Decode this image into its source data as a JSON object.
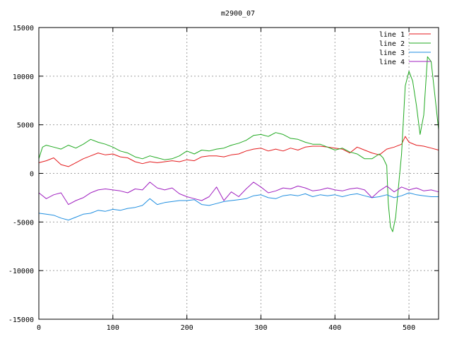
{
  "chart_data": {
    "type": "line",
    "title": "m2900_07",
    "xlabel": "",
    "ylabel": "",
    "xlim": [
      0,
      540
    ],
    "ylim": [
      -15000,
      15000
    ],
    "xticks": [
      0,
      100,
      200,
      300,
      400,
      500
    ],
    "yticks": [
      -15000,
      -10000,
      -5000,
      0,
      5000,
      10000,
      15000
    ],
    "grid": true,
    "legend_position": "top-right",
    "series": [
      {
        "name": "line 1",
        "color": "#e41a1c",
        "points": [
          [
            0,
            1100
          ],
          [
            10,
            1300
          ],
          [
            20,
            1600
          ],
          [
            30,
            900
          ],
          [
            40,
            700
          ],
          [
            50,
            1100
          ],
          [
            60,
            1500
          ],
          [
            70,
            1800
          ],
          [
            80,
            2100
          ],
          [
            90,
            1900
          ],
          [
            100,
            2000
          ],
          [
            110,
            1700
          ],
          [
            120,
            1600
          ],
          [
            130,
            1200
          ],
          [
            140,
            1000
          ],
          [
            150,
            1200
          ],
          [
            160,
            1100
          ],
          [
            170,
            1200
          ],
          [
            180,
            1300
          ],
          [
            190,
            1200
          ],
          [
            200,
            1400
          ],
          [
            210,
            1300
          ],
          [
            220,
            1700
          ],
          [
            230,
            1800
          ],
          [
            240,
            1800
          ],
          [
            250,
            1700
          ],
          [
            260,
            1900
          ],
          [
            270,
            2000
          ],
          [
            280,
            2300
          ],
          [
            290,
            2500
          ],
          [
            300,
            2600
          ],
          [
            310,
            2300
          ],
          [
            320,
            2500
          ],
          [
            330,
            2300
          ],
          [
            340,
            2600
          ],
          [
            350,
            2400
          ],
          [
            360,
            2700
          ],
          [
            370,
            2800
          ],
          [
            380,
            2800
          ],
          [
            390,
            2700
          ],
          [
            400,
            2600
          ],
          [
            410,
            2500
          ],
          [
            420,
            2100
          ],
          [
            430,
            2700
          ],
          [
            440,
            2400
          ],
          [
            450,
            2100
          ],
          [
            460,
            1900
          ],
          [
            470,
            2500
          ],
          [
            480,
            2700
          ],
          [
            490,
            3000
          ],
          [
            495,
            3800
          ],
          [
            500,
            3200
          ],
          [
            510,
            2900
          ],
          [
            520,
            2800
          ],
          [
            530,
            2600
          ],
          [
            540,
            2400
          ]
        ]
      },
      {
        "name": "line 2",
        "color": "#22aa22",
        "points": [
          [
            0,
            1500
          ],
          [
            5,
            2700
          ],
          [
            10,
            2900
          ],
          [
            20,
            2700
          ],
          [
            30,
            2500
          ],
          [
            40,
            2900
          ],
          [
            50,
            2600
          ],
          [
            60,
            3000
          ],
          [
            70,
            3500
          ],
          [
            80,
            3200
          ],
          [
            90,
            3000
          ],
          [
            100,
            2700
          ],
          [
            110,
            2300
          ],
          [
            120,
            2100
          ],
          [
            130,
            1700
          ],
          [
            140,
            1500
          ],
          [
            150,
            1800
          ],
          [
            160,
            1600
          ],
          [
            170,
            1400
          ],
          [
            180,
            1500
          ],
          [
            190,
            1800
          ],
          [
            200,
            2300
          ],
          [
            210,
            2000
          ],
          [
            220,
            2400
          ],
          [
            230,
            2300
          ],
          [
            240,
            2500
          ],
          [
            250,
            2600
          ],
          [
            260,
            2900
          ],
          [
            270,
            3100
          ],
          [
            280,
            3400
          ],
          [
            290,
            3900
          ],
          [
            300,
            4000
          ],
          [
            310,
            3800
          ],
          [
            320,
            4200
          ],
          [
            330,
            4000
          ],
          [
            340,
            3600
          ],
          [
            350,
            3500
          ],
          [
            360,
            3200
          ],
          [
            370,
            3000
          ],
          [
            380,
            3000
          ],
          [
            390,
            2700
          ],
          [
            400,
            2400
          ],
          [
            410,
            2600
          ],
          [
            420,
            2200
          ],
          [
            430,
            2000
          ],
          [
            440,
            1500
          ],
          [
            450,
            1500
          ],
          [
            460,
            2000
          ],
          [
            465,
            1600
          ],
          [
            470,
            800
          ],
          [
            472,
            -3000
          ],
          [
            475,
            -5500
          ],
          [
            478,
            -6000
          ],
          [
            482,
            -4500
          ],
          [
            485,
            -2000
          ],
          [
            490,
            2000
          ],
          [
            495,
            9000
          ],
          [
            500,
            10500
          ],
          [
            505,
            9500
          ],
          [
            510,
            7000
          ],
          [
            515,
            4000
          ],
          [
            520,
            6000
          ],
          [
            525,
            12000
          ],
          [
            530,
            11500
          ],
          [
            535,
            8000
          ],
          [
            540,
            4500
          ]
        ]
      },
      {
        "name": "line 3",
        "color": "#1f8ee0",
        "points": [
          [
            0,
            -4100
          ],
          [
            10,
            -4200
          ],
          [
            20,
            -4300
          ],
          [
            30,
            -4600
          ],
          [
            40,
            -4800
          ],
          [
            50,
            -4500
          ],
          [
            60,
            -4200
          ],
          [
            70,
            -4100
          ],
          [
            80,
            -3800
          ],
          [
            90,
            -3900
          ],
          [
            100,
            -3700
          ],
          [
            110,
            -3800
          ],
          [
            120,
            -3600
          ],
          [
            130,
            -3500
          ],
          [
            140,
            -3300
          ],
          [
            150,
            -2600
          ],
          [
            160,
            -3200
          ],
          [
            170,
            -3000
          ],
          [
            180,
            -2900
          ],
          [
            190,
            -2800
          ],
          [
            200,
            -2800
          ],
          [
            210,
            -2700
          ],
          [
            220,
            -3200
          ],
          [
            230,
            -3300
          ],
          [
            240,
            -3100
          ],
          [
            250,
            -2900
          ],
          [
            260,
            -2800
          ],
          [
            270,
            -2700
          ],
          [
            280,
            -2600
          ],
          [
            290,
            -2300
          ],
          [
            300,
            -2200
          ],
          [
            310,
            -2500
          ],
          [
            320,
            -2600
          ],
          [
            330,
            -2300
          ],
          [
            340,
            -2200
          ],
          [
            350,
            -2300
          ],
          [
            360,
            -2100
          ],
          [
            370,
            -2400
          ],
          [
            380,
            -2200
          ],
          [
            390,
            -2300
          ],
          [
            400,
            -2200
          ],
          [
            410,
            -2400
          ],
          [
            420,
            -2200
          ],
          [
            430,
            -2100
          ],
          [
            440,
            -2300
          ],
          [
            450,
            -2500
          ],
          [
            460,
            -2400
          ],
          [
            470,
            -2200
          ],
          [
            480,
            -2500
          ],
          [
            490,
            -2300
          ],
          [
            500,
            -2000
          ],
          [
            510,
            -2200
          ],
          [
            520,
            -2300
          ],
          [
            530,
            -2400
          ],
          [
            540,
            -2400
          ]
        ]
      },
      {
        "name": "line 4",
        "color": "#a020c0",
        "points": [
          [
            0,
            -2000
          ],
          [
            10,
            -2600
          ],
          [
            20,
            -2200
          ],
          [
            30,
            -2000
          ],
          [
            40,
            -3200
          ],
          [
            50,
            -2800
          ],
          [
            60,
            -2500
          ],
          [
            70,
            -2000
          ],
          [
            80,
            -1700
          ],
          [
            90,
            -1600
          ],
          [
            100,
            -1700
          ],
          [
            110,
            -1800
          ],
          [
            120,
            -2000
          ],
          [
            130,
            -1600
          ],
          [
            140,
            -1700
          ],
          [
            150,
            -900
          ],
          [
            160,
            -1500
          ],
          [
            170,
            -1700
          ],
          [
            180,
            -1500
          ],
          [
            190,
            -2100
          ],
          [
            200,
            -2400
          ],
          [
            210,
            -2600
          ],
          [
            220,
            -2800
          ],
          [
            230,
            -2400
          ],
          [
            240,
            -1400
          ],
          [
            250,
            -2800
          ],
          [
            260,
            -1900
          ],
          [
            270,
            -2400
          ],
          [
            280,
            -1600
          ],
          [
            290,
            -900
          ],
          [
            300,
            -1400
          ],
          [
            310,
            -2000
          ],
          [
            320,
            -1800
          ],
          [
            330,
            -1500
          ],
          [
            340,
            -1600
          ],
          [
            350,
            -1300
          ],
          [
            360,
            -1500
          ],
          [
            370,
            -1800
          ],
          [
            380,
            -1700
          ],
          [
            390,
            -1500
          ],
          [
            400,
            -1700
          ],
          [
            410,
            -1800
          ],
          [
            420,
            -1600
          ],
          [
            430,
            -1500
          ],
          [
            440,
            -1700
          ],
          [
            450,
            -2500
          ],
          [
            460,
            -1800
          ],
          [
            470,
            -1300
          ],
          [
            480,
            -1900
          ],
          [
            490,
            -1400
          ],
          [
            500,
            -1700
          ],
          [
            510,
            -1500
          ],
          [
            520,
            -1800
          ],
          [
            530,
            -1700
          ],
          [
            540,
            -1900
          ]
        ]
      }
    ]
  }
}
